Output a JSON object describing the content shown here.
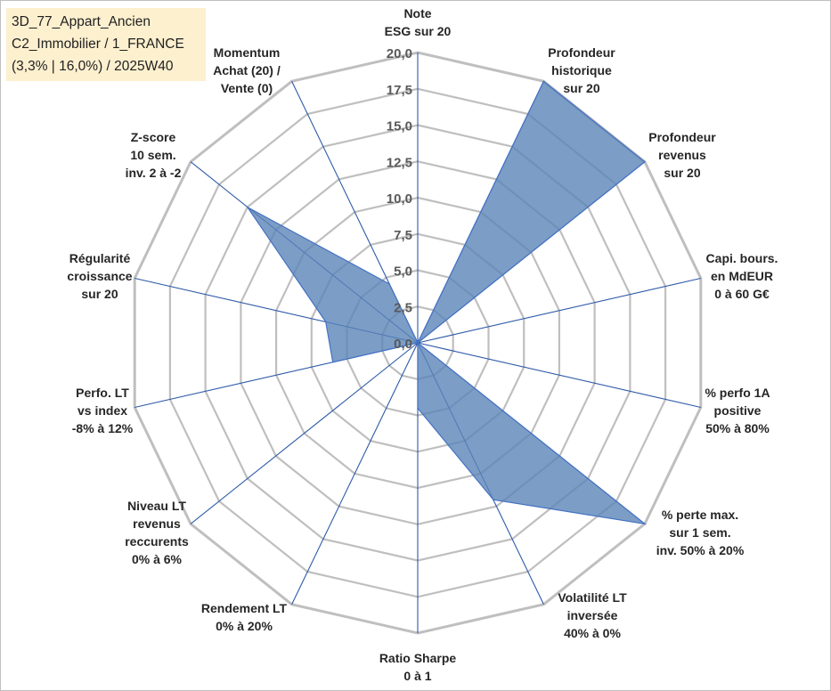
{
  "header": {
    "line1": "3D_77_Appart_Ancien",
    "line2": "C2_Immobilier / 1_FRANCE",
    "line3": "(3,3% | 16,0%) / 2025W40"
  },
  "colors": {
    "fill": "#5b84b8",
    "stroke": "#4472c4",
    "grid": "#bfbfbf",
    "spoke": "#2e5aa8",
    "title_bg": "#fdf0cf"
  },
  "chart_data": {
    "type": "radar",
    "title": "3D_77_Appart_Ancien",
    "r_range": [
      0,
      20
    ],
    "r_ticks": [
      "0,0",
      "2,5",
      "5,0",
      "7,5",
      "10,0",
      "12,5",
      "15,0",
      "17,5",
      "20,0"
    ],
    "r_tick_values": [
      0,
      2.5,
      5,
      7.5,
      10,
      12.5,
      15,
      17.5,
      20
    ],
    "axes": [
      {
        "label": [
          "Note",
          "ESG sur 20"
        ],
        "value": 0
      },
      {
        "label": [
          "Profondeur",
          "historique",
          "sur 20"
        ],
        "value": 20
      },
      {
        "label": [
          "Profondeur",
          "revenus",
          "sur 20"
        ],
        "value": 20
      },
      {
        "label": [
          "Capi. bours.",
          "en MdEUR",
          "0 à 60 G€"
        ],
        "value": 0
      },
      {
        "label": [
          "% perfo 1A",
          "positive",
          "50% à 80%"
        ],
        "value": 0
      },
      {
        "label": [
          "% perte max.",
          "sur 1 sem.",
          "inv. 50% à 20%"
        ],
        "value": 20
      },
      {
        "label": [
          "Volatilité LT",
          "inversée",
          "40% à 0%"
        ],
        "value": 12
      },
      {
        "label": [
          "Ratio Sharpe",
          "0 à 1"
        ],
        "value": 4.5
      },
      {
        "label": [
          "Rendement LT",
          "0% à 20%"
        ],
        "value": 0
      },
      {
        "label": [
          "Niveau LT",
          "revenus",
          "reccurents",
          "0% à 6%"
        ],
        "value": 0
      },
      {
        "label": [
          "Perfo. LT",
          "vs index",
          "-8% à 12%"
        ],
        "value": 6
      },
      {
        "label": [
          "Régularité",
          "croissance",
          "sur 20"
        ],
        "value": 6.5
      },
      {
        "label": [
          "Z-score",
          "10 sem.",
          "inv. 2 à -2"
        ],
        "value": 15
      },
      {
        "label": [
          "Momentum",
          "Achat (20) /",
          "Vente (0)"
        ],
        "value": 4.5
      }
    ]
  }
}
